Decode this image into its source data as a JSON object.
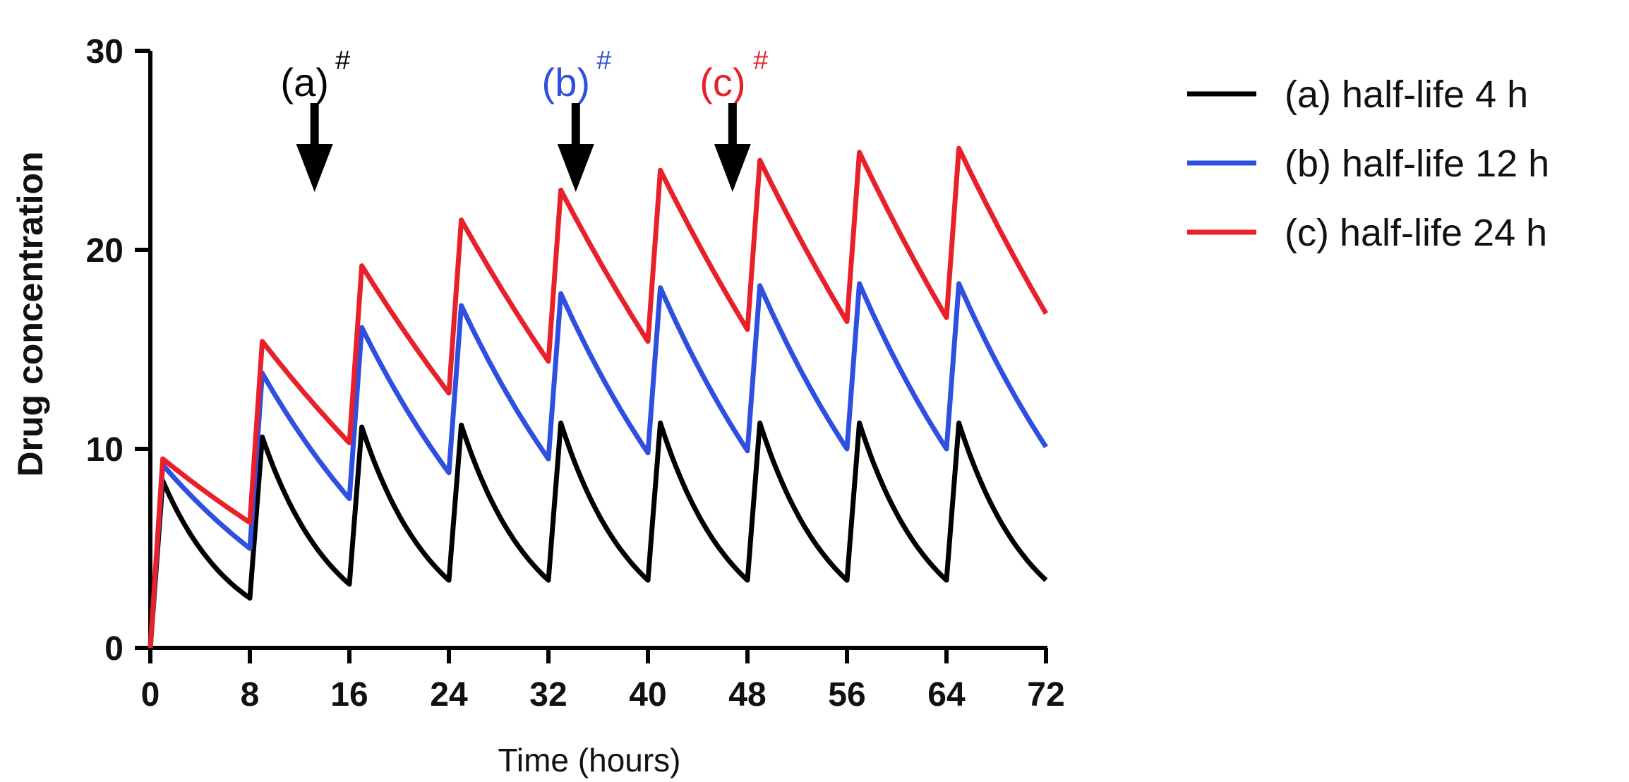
{
  "chart_data": {
    "type": "line",
    "xlabel": "Time (hours)",
    "ylabel": "Drug concentration",
    "xlim": [
      0,
      72
    ],
    "ylim": [
      0,
      30
    ],
    "xticks": [
      0,
      8,
      16,
      24,
      32,
      40,
      48,
      56,
      64,
      72
    ],
    "yticks": [
      0,
      10,
      20,
      30
    ],
    "grid": false,
    "legend_position": "right",
    "series": [
      {
        "name": "(a) half-life 4 h",
        "color": "#000000",
        "x": [
          0,
          1,
          8,
          9,
          16,
          17,
          24,
          25,
          32,
          33,
          40,
          41,
          48,
          49,
          56,
          57,
          64,
          65,
          72
        ],
        "y": [
          0,
          8.4,
          2.5,
          10.6,
          3.2,
          11.1,
          3.4,
          11.2,
          3.4,
          11.3,
          3.4,
          11.3,
          3.4,
          11.3,
          3.4,
          11.3,
          3.4,
          11.3,
          3.4
        ],
        "decay_half_life_hours": 4
      },
      {
        "name": "(b) half-life 12 h",
        "color": "#2f4fe0",
        "x": [
          0,
          1,
          8,
          9,
          16,
          17,
          24,
          25,
          32,
          33,
          40,
          41,
          48,
          49,
          56,
          57,
          64,
          65,
          72
        ],
        "y": [
          0,
          9.2,
          5.0,
          13.8,
          7.5,
          16.1,
          8.8,
          17.2,
          9.5,
          17.8,
          9.8,
          18.1,
          9.9,
          18.2,
          10.0,
          18.3,
          10.0,
          18.3,
          10.1
        ],
        "decay_half_life_hours": 12
      },
      {
        "name": "(c) half-life 24 h",
        "color": "#e8202a",
        "x": [
          0,
          1,
          8,
          9,
          16,
          17,
          24,
          25,
          32,
          33,
          40,
          41,
          48,
          49,
          56,
          57,
          64,
          65,
          72
        ],
        "y": [
          0,
          9.5,
          6.3,
          15.4,
          10.3,
          19.2,
          12.8,
          21.5,
          14.4,
          23.0,
          15.4,
          24.0,
          16.0,
          24.5,
          16.4,
          24.9,
          16.6,
          25.1,
          16.8
        ],
        "decay_half_life_hours": 24
      }
    ],
    "annotations": [
      {
        "label": "(a)",
        "sup": "#",
        "color": "#000000",
        "x": 13.2
      },
      {
        "label": "(b)",
        "sup": "#",
        "color": "#2f4fe0",
        "x": 34.2
      },
      {
        "label": "(c)",
        "sup": "#",
        "color": "#e8202a",
        "x": 46.8
      }
    ]
  }
}
